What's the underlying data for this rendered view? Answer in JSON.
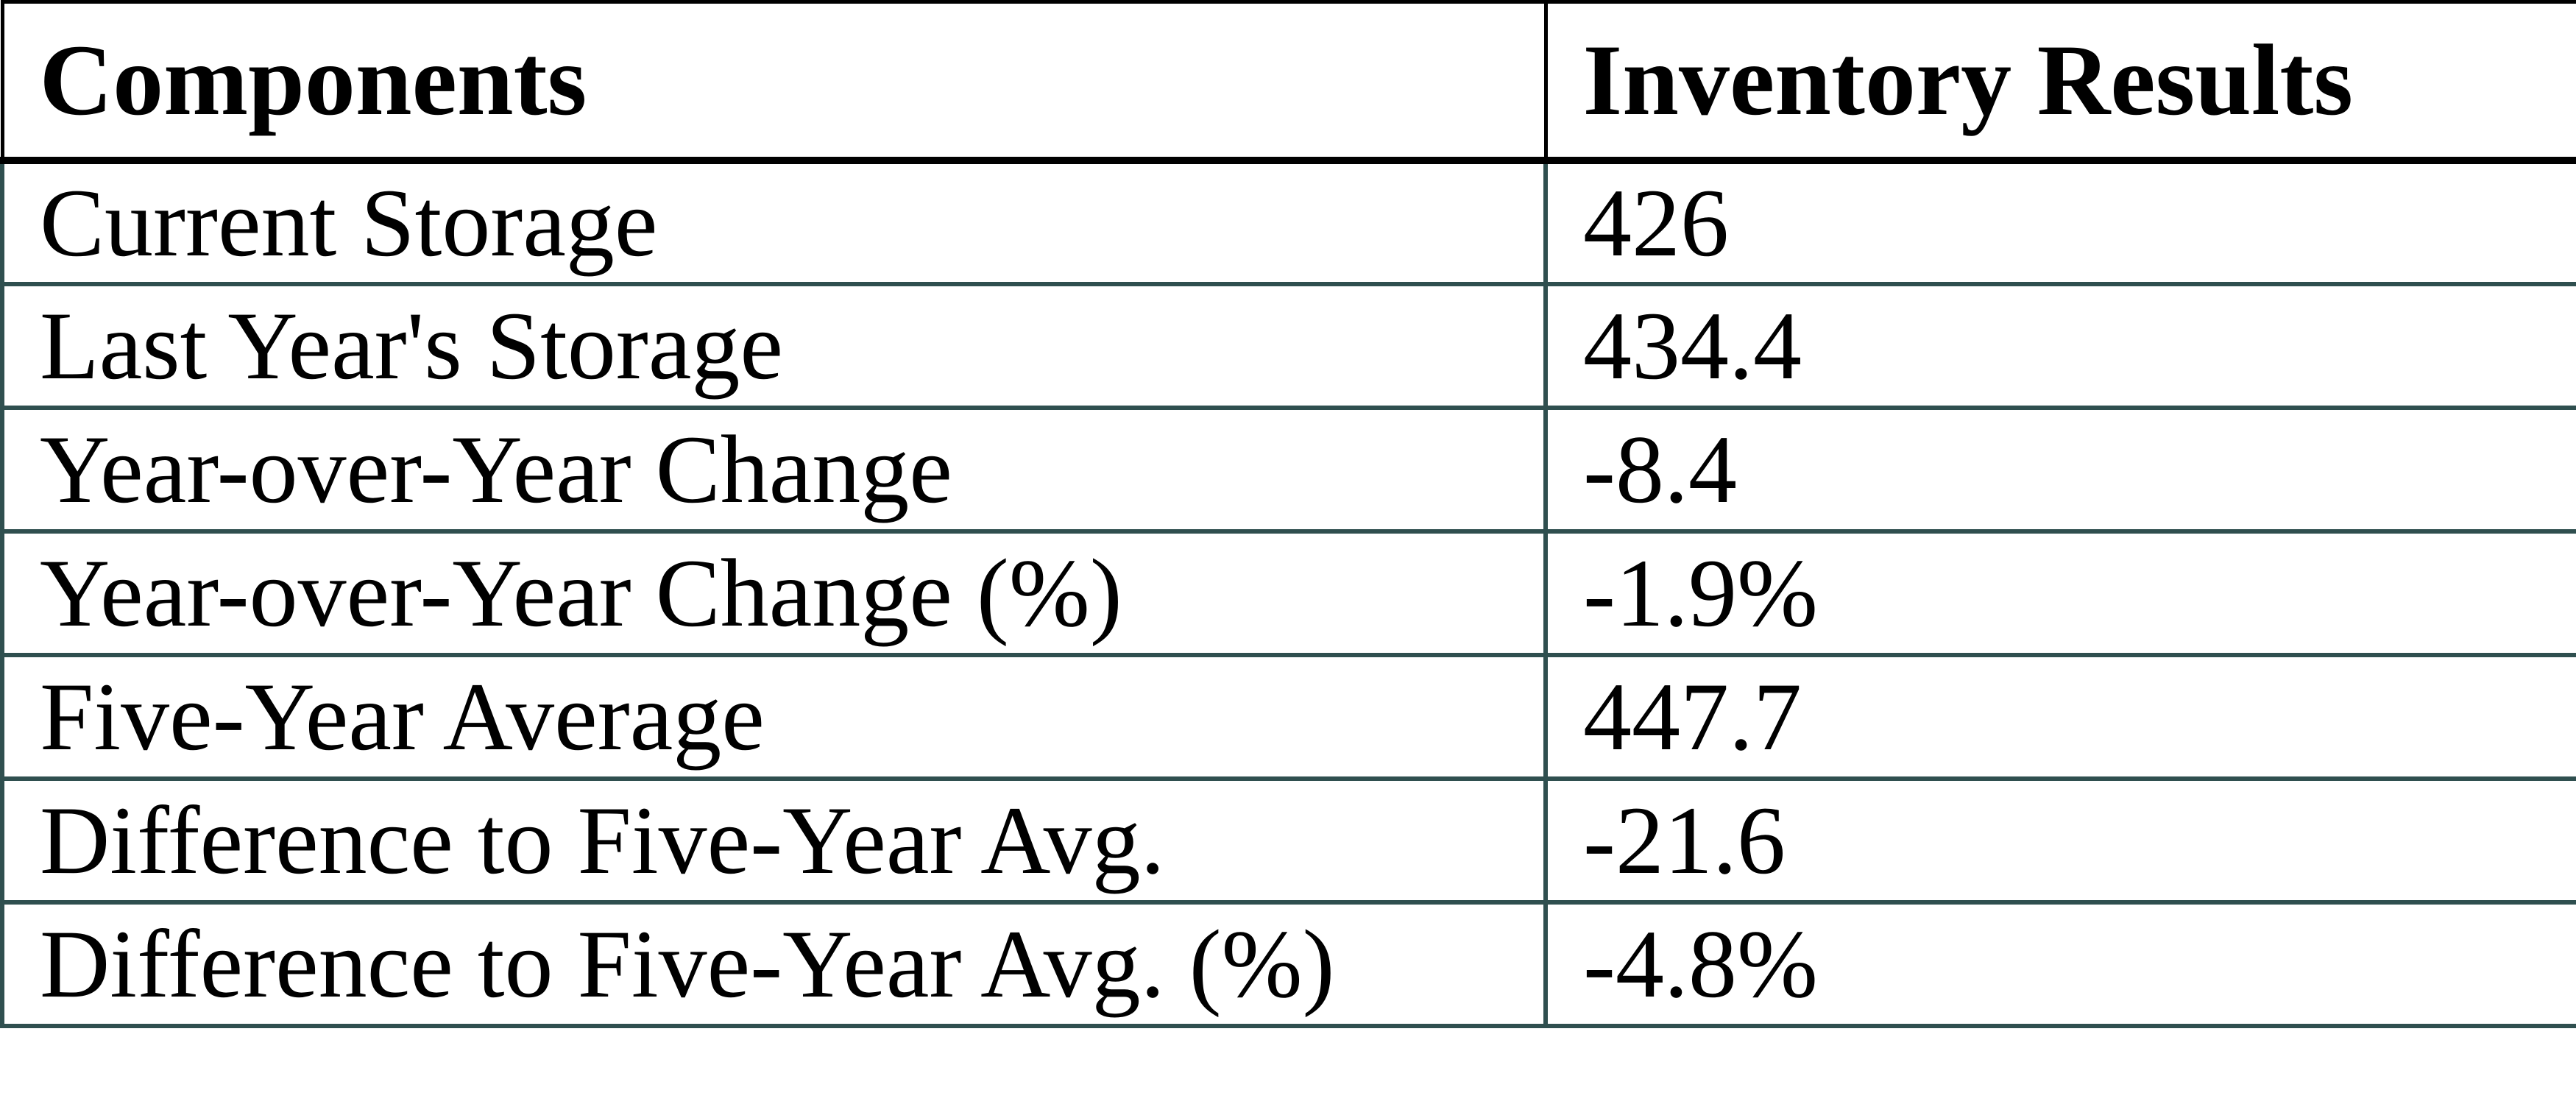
{
  "chart_data": {
    "type": "table",
    "columns": [
      "Components",
      "Inventory Results"
    ],
    "rows": [
      {
        "component": "Current Storage",
        "result": "426"
      },
      {
        "component": "Last Year's Storage",
        "result": "434.4"
      },
      {
        "component": "Year-over-Year Change",
        "result": "-8.4"
      },
      {
        "component": "Year-over-Year Change (%)",
        "result": "-1.9%"
      },
      {
        "component": "Five-Year Average",
        "result": "447.7"
      },
      {
        "component": "Difference to Five-Year Avg.",
        "result": "-21.6"
      },
      {
        "component": "Difference to Five-Year Avg. (%)",
        "result": "-4.8%"
      }
    ]
  },
  "colors": {
    "header_border": "#000000",
    "body_border": "#2F4F4F",
    "text": "#000000",
    "background": "#ffffff"
  }
}
